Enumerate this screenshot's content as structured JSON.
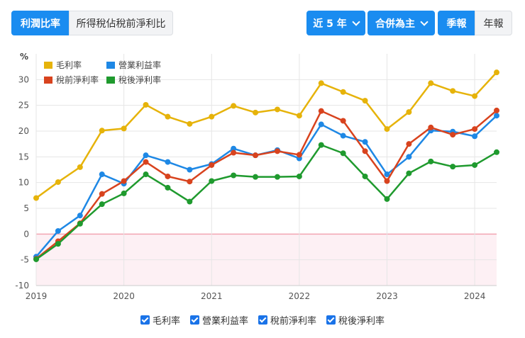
{
  "toolbar": {
    "tab_margin": "利潤比率",
    "tab_tax": "所得稅佔稅前淨利比",
    "period": "近 5 年",
    "consolidation": "合併為主",
    "quarterly": "季報",
    "annual": "年報"
  },
  "colors": {
    "primary": "#1a8cf0",
    "gross": "#e6b30a",
    "operating": "#1e88e5",
    "pretax": "#d8431e",
    "net": "#1f9a2e",
    "negative_band": "#fdf0f4",
    "zero_line": "#f2a5b1"
  },
  "chart_data": {
    "type": "line",
    "ylabel": "%",
    "ylim": [
      -10,
      35
    ],
    "yticks": [
      -10,
      -5,
      0,
      5,
      10,
      15,
      20,
      25,
      30
    ],
    "xlim": [
      2019,
      2024.25
    ],
    "xticks": [
      "2019",
      "2020",
      "2021",
      "2022",
      "2023",
      "2024"
    ],
    "x": [
      2019,
      2019.25,
      2019.5,
      2019.75,
      2020,
      2020.25,
      2020.5,
      2020.75,
      2021,
      2021.25,
      2021.5,
      2021.75,
      2022,
      2022.25,
      2022.5,
      2022.75,
      2023,
      2023.25,
      2023.5,
      2023.75,
      2024,
      2024.25
    ],
    "legend_position": "top-left",
    "series": [
      {
        "name": "毛利率",
        "color": "#e6b30a",
        "values": [
          7.0,
          10.1,
          13.0,
          20.1,
          20.5,
          25.1,
          22.8,
          21.4,
          22.8,
          24.9,
          23.6,
          24.2,
          23.0,
          29.3,
          27.6,
          25.9,
          20.4,
          23.7,
          29.3,
          27.8,
          26.8,
          31.4
        ]
      },
      {
        "name": "營業利益率",
        "color": "#1e88e5",
        "values": [
          -4.4,
          0.6,
          3.6,
          11.6,
          9.8,
          15.3,
          14.0,
          12.5,
          13.6,
          16.6,
          15.3,
          16.3,
          14.7,
          21.3,
          19.1,
          17.9,
          11.6,
          15.0,
          20.1,
          19.9,
          19.0,
          23.0
        ]
      },
      {
        "name": "稅前淨利率",
        "color": "#d8431e",
        "values": [
          -4.8,
          -1.4,
          2.1,
          7.8,
          10.3,
          14.0,
          11.2,
          10.2,
          13.4,
          15.8,
          15.3,
          16.1,
          15.4,
          23.9,
          22.0,
          16.1,
          10.3,
          17.5,
          20.7,
          19.3,
          20.4,
          24.0
        ]
      },
      {
        "name": "稅後淨利率",
        "color": "#1f9a2e",
        "values": [
          -4.9,
          -1.9,
          2.0,
          5.8,
          7.9,
          11.6,
          9.0,
          6.3,
          10.3,
          11.4,
          11.1,
          11.1,
          11.2,
          17.3,
          15.7,
          11.2,
          6.8,
          11.8,
          14.1,
          13.1,
          13.4,
          15.9
        ]
      }
    ]
  }
}
